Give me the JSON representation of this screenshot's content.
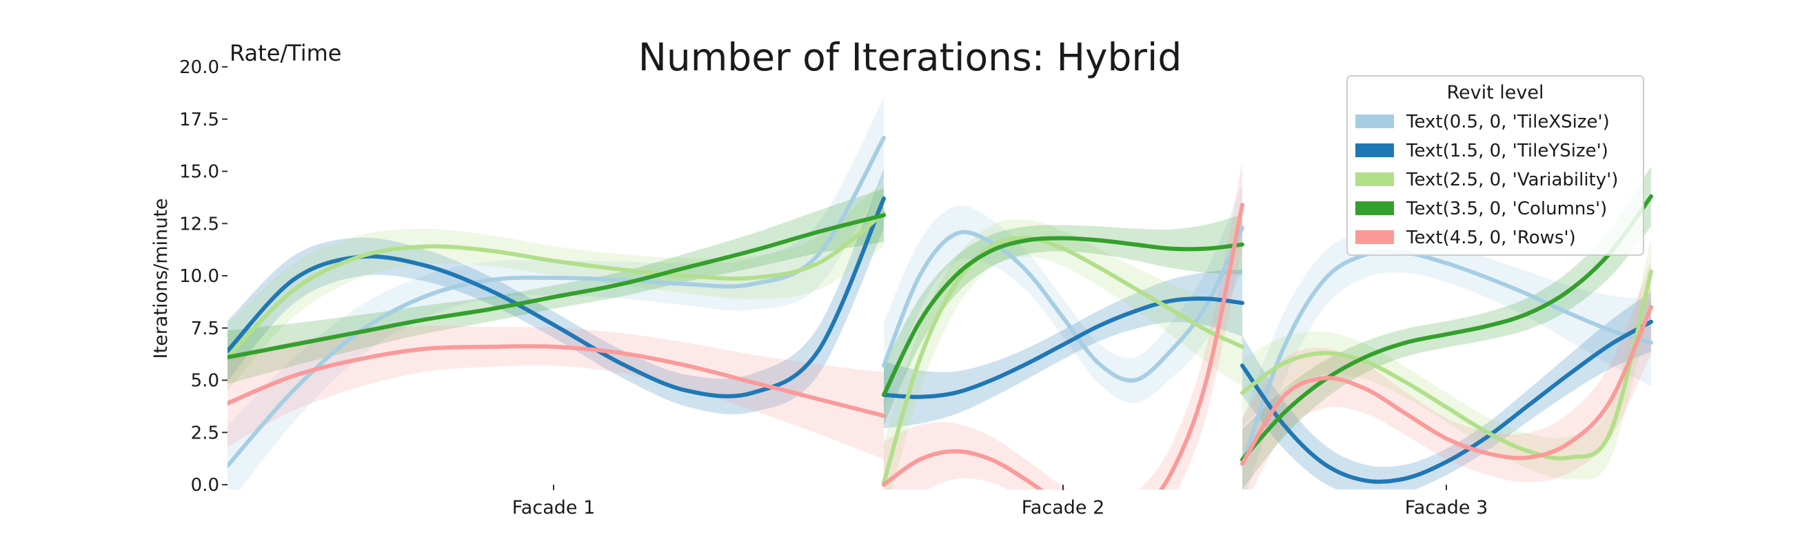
{
  "chart_data": {
    "type": "line",
    "title": "Number of Iterations: Hybrid",
    "corner_label": "Rate/Time",
    "ylabel": "Iterations/minute",
    "xlabel": "",
    "ylim": [
      0,
      20
    ],
    "yticks": [
      "0.0",
      "2.5",
      "5.0",
      "7.5",
      "10.0",
      "12.5",
      "15.0",
      "17.5",
      "20.0"
    ],
    "grid": false,
    "categories": [
      "Facade 1",
      "Facade 2",
      "Facade 3"
    ],
    "panels": [
      {
        "category": "Facade 1",
        "x_span": [
          0,
          1
        ]
      },
      {
        "category": "Facade 2",
        "x_span": [
          1,
          1.55
        ]
      },
      {
        "category": "Facade 3",
        "x_span": [
          1.55,
          2.18
        ]
      }
    ],
    "legend": {
      "title": "Revit level",
      "position": "top-right",
      "entries": [
        "Text(0.5, 0, 'TileXSize')",
        "Text(1.5, 0, 'TileYSize')",
        "Text(2.5, 0, 'Variability')",
        "Text(3.5, 0, 'Columns')",
        "Text(4.5, 0, 'Rows')"
      ]
    },
    "series": [
      {
        "name": "Text(0.5, 0, 'TileXSize')",
        "color": "#a6cee3",
        "segments": [
          {
            "panel": 0,
            "points": [
              [
                0.0,
                0.9
              ],
              [
                0.1,
                4.5
              ],
              [
                0.2,
                7.3
              ],
              [
                0.3,
                9.0
              ],
              [
                0.4,
                9.8
              ],
              [
                0.5,
                9.9
              ],
              [
                0.6,
                9.8
              ],
              [
                0.7,
                9.6
              ],
              [
                0.8,
                9.6
              ],
              [
                0.9,
                11.0
              ],
              [
                1.0,
                16.6
              ]
            ],
            "band": 1.2
          },
          {
            "panel": 1,
            "points": [
              [
                0.0,
                5.7
              ],
              [
                0.1,
                10.0
              ],
              [
                0.2,
                12.0
              ],
              [
                0.3,
                11.6
              ],
              [
                0.4,
                10.2
              ],
              [
                0.5,
                8.0
              ],
              [
                0.6,
                5.8
              ],
              [
                0.7,
                5.0
              ],
              [
                0.8,
                6.4
              ],
              [
                0.9,
                8.6
              ],
              [
                1.0,
                12.3
              ]
            ],
            "band": 1.3
          },
          {
            "panel": 2,
            "points": [
              [
                0.0,
                1.0
              ],
              [
                0.1,
                6.5
              ],
              [
                0.2,
                9.8
              ],
              [
                0.3,
                11.0
              ],
              [
                0.4,
                11.1
              ],
              [
                0.5,
                10.6
              ],
              [
                0.6,
                9.9
              ],
              [
                0.7,
                9.1
              ],
              [
                0.8,
                8.2
              ],
              [
                0.9,
                7.4
              ],
              [
                1.0,
                6.8
              ]
            ],
            "band": 1.3
          }
        ]
      },
      {
        "name": "Text(1.5, 0, 'TileYSize')",
        "color": "#1f78b4",
        "segments": [
          {
            "panel": 0,
            "points": [
              [
                0.0,
                6.4
              ],
              [
                0.1,
                9.8
              ],
              [
                0.2,
                10.9
              ],
              [
                0.3,
                10.5
              ],
              [
                0.4,
                9.3
              ],
              [
                0.5,
                7.6
              ],
              [
                0.6,
                5.8
              ],
              [
                0.7,
                4.5
              ],
              [
                0.8,
                4.4
              ],
              [
                0.9,
                6.4
              ],
              [
                1.0,
                13.7
              ]
            ],
            "band": 0.9
          },
          {
            "panel": 1,
            "points": [
              [
                0.0,
                4.3
              ],
              [
                0.1,
                4.2
              ],
              [
                0.2,
                4.4
              ],
              [
                0.3,
                5.0
              ],
              [
                0.4,
                5.8
              ],
              [
                0.5,
                6.7
              ],
              [
                0.6,
                7.6
              ],
              [
                0.7,
                8.3
              ],
              [
                0.8,
                8.8
              ],
              [
                0.9,
                8.9
              ],
              [
                1.0,
                8.7
              ]
            ],
            "band": 1.0
          },
          {
            "panel": 2,
            "points": [
              [
                0.0,
                5.7
              ],
              [
                0.1,
                2.9
              ],
              [
                0.2,
                1.0
              ],
              [
                0.3,
                0.2
              ],
              [
                0.4,
                0.3
              ],
              [
                0.5,
                1.1
              ],
              [
                0.6,
                2.3
              ],
              [
                0.7,
                3.8
              ],
              [
                0.8,
                5.3
              ],
              [
                0.9,
                6.7
              ],
              [
                1.0,
                7.8
              ]
            ],
            "band": 0.9
          }
        ]
      },
      {
        "name": "Text(2.5, 0, 'Variability')",
        "color": "#b2df8a",
        "segments": [
          {
            "panel": 0,
            "points": [
              [
                0.0,
                6.1
              ],
              [
                0.1,
                9.3
              ],
              [
                0.2,
                10.9
              ],
              [
                0.3,
                11.4
              ],
              [
                0.4,
                11.2
              ],
              [
                0.5,
                10.7
              ],
              [
                0.6,
                10.3
              ],
              [
                0.7,
                10.0
              ],
              [
                0.8,
                9.9
              ],
              [
                0.9,
                10.6
              ],
              [
                1.0,
                13.0
              ]
            ],
            "band": 1.0
          },
          {
            "panel": 1,
            "points": [
              [
                0.0,
                0.1
              ],
              [
                0.1,
                6.0
              ],
              [
                0.2,
                9.6
              ],
              [
                0.3,
                11.4
              ],
              [
                0.4,
                11.8
              ],
              [
                0.5,
                11.3
              ],
              [
                0.6,
                10.4
              ],
              [
                0.7,
                9.4
              ],
              [
                0.8,
                8.4
              ],
              [
                0.9,
                7.4
              ],
              [
                1.0,
                6.6
              ]
            ],
            "band": 1.2
          },
          {
            "panel": 2,
            "points": [
              [
                0.0,
                4.4
              ],
              [
                0.1,
                5.8
              ],
              [
                0.2,
                6.3
              ],
              [
                0.3,
                5.9
              ],
              [
                0.4,
                4.9
              ],
              [
                0.5,
                3.7
              ],
              [
                0.6,
                2.5
              ],
              [
                0.7,
                1.6
              ],
              [
                0.8,
                1.3
              ],
              [
                0.9,
                2.5
              ],
              [
                1.0,
                10.2
              ]
            ],
            "band": 1.0
          }
        ]
      },
      {
        "name": "Text(3.5, 0, 'Columns')",
        "color": "#33a02c",
        "segments": [
          {
            "panel": 0,
            "points": [
              [
                0.0,
                6.1
              ],
              [
                0.1,
                6.7
              ],
              [
                0.2,
                7.3
              ],
              [
                0.3,
                7.9
              ],
              [
                0.4,
                8.4
              ],
              [
                0.5,
                9.0
              ],
              [
                0.6,
                9.6
              ],
              [
                0.7,
                10.4
              ],
              [
                0.8,
                11.2
              ],
              [
                0.9,
                12.1
              ],
              [
                1.0,
                12.9
              ]
            ],
            "band": 0.8
          },
          {
            "panel": 1,
            "points": [
              [
                0.0,
                4.3
              ],
              [
                0.1,
                7.8
              ],
              [
                0.2,
                10.0
              ],
              [
                0.3,
                11.2
              ],
              [
                0.4,
                11.7
              ],
              [
                0.5,
                11.8
              ],
              [
                0.6,
                11.7
              ],
              [
                0.7,
                11.5
              ],
              [
                0.8,
                11.3
              ],
              [
                0.9,
                11.3
              ],
              [
                1.0,
                11.5
              ]
            ],
            "band": 0.9
          },
          {
            "panel": 2,
            "points": [
              [
                0.0,
                1.2
              ],
              [
                0.1,
                3.4
              ],
              [
                0.2,
                5.0
              ],
              [
                0.3,
                6.1
              ],
              [
                0.4,
                6.8
              ],
              [
                0.5,
                7.2
              ],
              [
                0.6,
                7.6
              ],
              [
                0.7,
                8.2
              ],
              [
                0.8,
                9.3
              ],
              [
                0.9,
                11.1
              ],
              [
                1.0,
                13.8
              ]
            ],
            "band": 0.9
          }
        ]
      },
      {
        "name": "Text(4.5, 0, 'Rows')",
        "color": "#fb9a99",
        "segments": [
          {
            "panel": 0,
            "points": [
              [
                0.0,
                3.9
              ],
              [
                0.1,
                5.2
              ],
              [
                0.2,
                6.0
              ],
              [
                0.3,
                6.5
              ],
              [
                0.4,
                6.6
              ],
              [
                0.5,
                6.6
              ],
              [
                0.6,
                6.3
              ],
              [
                0.7,
                5.7
              ],
              [
                0.8,
                4.9
              ],
              [
                0.9,
                4.1
              ],
              [
                1.0,
                3.3
              ]
            ],
            "band": 1.3
          },
          {
            "panel": 1,
            "points": [
              [
                0.0,
                0.0
              ],
              [
                0.1,
                1.2
              ],
              [
                0.2,
                1.6
              ],
              [
                0.3,
                1.2
              ],
              [
                0.4,
                0.2
              ],
              [
                0.5,
                -1.0
              ],
              [
                0.6,
                -2.0
              ],
              [
                0.7,
                -1.5
              ],
              [
                0.8,
                0.5
              ],
              [
                0.9,
                5.0
              ],
              [
                1.0,
                13.4
              ]
            ],
            "band": 1.3
          },
          {
            "panel": 2,
            "points": [
              [
                0.0,
                1.0
              ],
              [
                0.1,
                4.2
              ],
              [
                0.2,
                5.1
              ],
              [
                0.3,
                4.6
              ],
              [
                0.4,
                3.4
              ],
              [
                0.5,
                2.2
              ],
              [
                0.6,
                1.5
              ],
              [
                0.7,
                1.3
              ],
              [
                0.8,
                2.0
              ],
              [
                0.9,
                4.0
              ],
              [
                1.0,
                8.5
              ]
            ],
            "band": 1.4
          }
        ]
      }
    ]
  }
}
